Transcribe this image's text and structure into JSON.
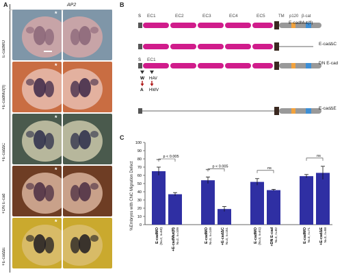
{
  "panelA": {
    "letter": "A",
    "header": "AP2",
    "side_label": "E-cadMO",
    "rows": [
      {
        "label": "E-cadMO",
        "star": "*",
        "bg": "#7f96a8",
        "embryo": "#c7a4a7",
        "stain": "#8a6678"
      },
      {
        "label": "+E-cadMut(fl)",
        "star": "*",
        "bg": "#c96d42",
        "embryo": "#e3b19f",
        "stain": "#3c2848"
      },
      {
        "label": "+E-cadΔC",
        "star": "*",
        "bg": "#4a5a4d",
        "embryo": "#b7b79c",
        "stain": "#2c2d4a"
      },
      {
        "label": "+DN E-cad",
        "star": "*",
        "bg": "#6e3d24",
        "embryo": "#c9a18a",
        "stain": "#4a2d42"
      },
      {
        "label": "+E-cadΔE",
        "star": "*",
        "bg": "#caa92e",
        "embryo": "#d8bb67",
        "stain": "#1e1b22"
      }
    ]
  },
  "panelB": {
    "letter": "B",
    "signal_label": "S",
    "domains": [
      "EC1",
      "EC2",
      "EC3",
      "EC4",
      "EC5",
      "TM",
      "p120",
      "β-cat"
    ],
    "constructs": [
      "E-cadMut(fl)",
      "E-cadΔC",
      "DN E-cad",
      "E-cadΔE"
    ],
    "dn_signal": "S",
    "dn_domain": "EC1",
    "mutations": [
      {
        "from": "W",
        "to": "A"
      },
      {
        "from": "HAV",
        "to": "HWV"
      }
    ]
  },
  "panelC": {
    "letter": "C",
    "chart_data": {
      "type": "bar",
      "ylabel": "%Embryos with CNC Migration Defect",
      "ylim": [
        0,
        100
      ],
      "yticks": [
        0,
        10,
        20,
        30,
        40,
        50,
        60,
        70,
        80,
        90,
        100
      ],
      "bars": [
        {
          "label": "E-cadMO",
          "sub": "(N=2, n=60)",
          "value": 65,
          "err": 5
        },
        {
          "label": "+E-cadMut(fl)",
          "sub": "N=2, n=109",
          "value": 37,
          "err": 2
        },
        {
          "label": "E-cadMO",
          "sub": "N=3, n=149",
          "value": 54,
          "err": 4
        },
        {
          "label": "+E-cadΔC",
          "sub": "N=3, n=151",
          "value": 19,
          "err": 3
        },
        {
          "label": "E-cadMO",
          "sub": "(N=3, n=81)",
          "value": 52,
          "err": 4
        },
        {
          "label": "+DN E-cad",
          "sub": "N=3, n=82",
          "value": 42,
          "err": 1
        },
        {
          "label": "E-cadMO",
          "sub": "N=3, n=71",
          "value": 59,
          "err": 2
        },
        {
          "label": "+E-cadΔE",
          "sub": "N=3, n=98",
          "value": 63,
          "err": 8
        }
      ],
      "comparisons": [
        {
          "p": "p < 0.005",
          "stars": "***"
        },
        {
          "p": "p < 0.005",
          "stars": "***"
        },
        {
          "p": "ns",
          "stars": ""
        },
        {
          "p": "ns",
          "stars": ""
        }
      ],
      "bar_color": "#2f2fa3"
    }
  }
}
